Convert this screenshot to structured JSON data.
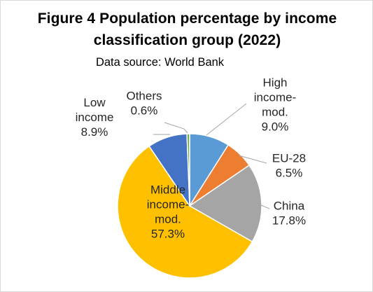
{
  "chart_data": {
    "type": "pie",
    "title_line_1": "Figure 4 Population percentage by income",
    "title_line_2": "classification group (2022)",
    "subtitle": "Data source: World Bank",
    "slices": [
      {
        "name_lines": [
          "High",
          "income-",
          "mod."
        ],
        "value": 9.0,
        "value_label": "9.0%",
        "color": "#5b9bd5"
      },
      {
        "name_lines": [
          "EU-28"
        ],
        "value": 6.5,
        "value_label": "6.5%",
        "color": "#ed7d31"
      },
      {
        "name_lines": [
          "China"
        ],
        "value": 17.8,
        "value_label": "17.8%",
        "color": "#a5a5a5"
      },
      {
        "name_lines": [
          "Middle",
          "income-",
          "mod."
        ],
        "value": 57.3,
        "value_label": "57.3%",
        "color": "#ffc000"
      },
      {
        "name_lines": [
          "Low",
          "income"
        ],
        "value": 8.9,
        "value_label": "8.9%",
        "color": "#4472c4"
      },
      {
        "name_lines": [
          "Others"
        ],
        "value": 0.6,
        "value_label": "0.6%",
        "color": "#70ad47"
      }
    ],
    "start_angle_deg": 0,
    "direction": "clockwise",
    "legend": "none",
    "data_labels": "category name and percentage"
  }
}
